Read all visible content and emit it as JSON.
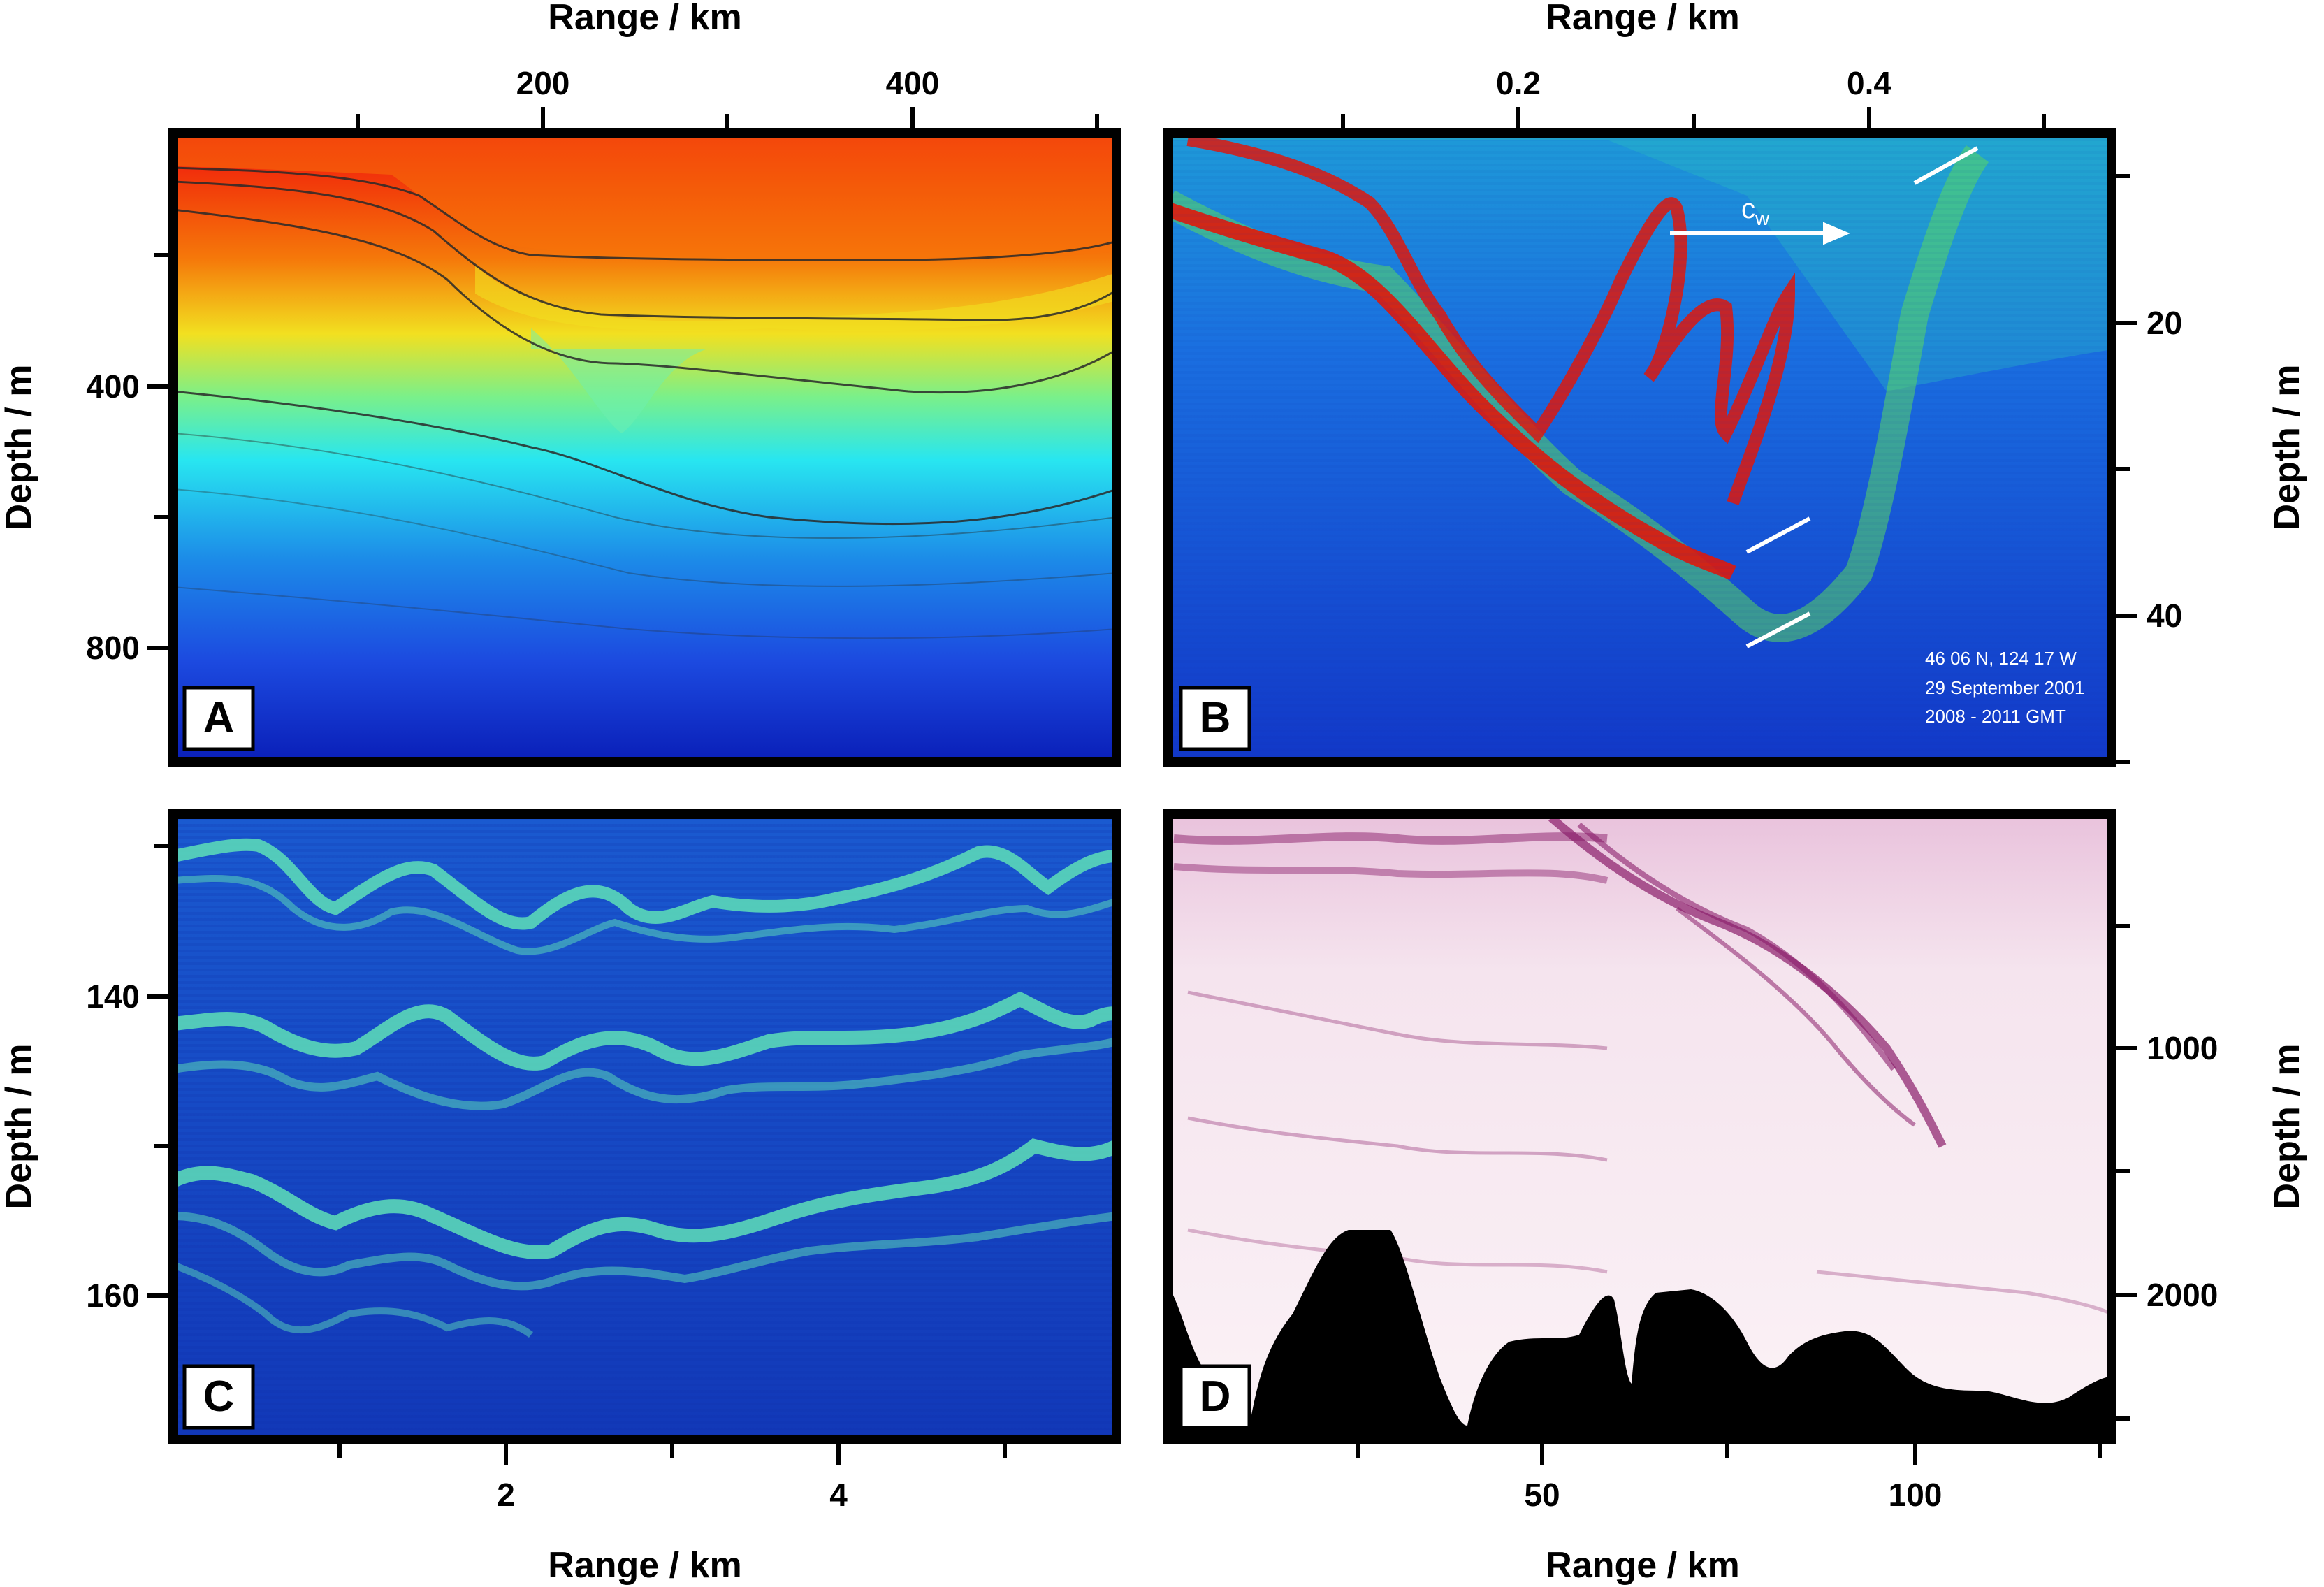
{
  "panels": {
    "A": {
      "letter": "A",
      "top_axis_label": "Range / km",
      "top_ticks": [
        "200",
        "400"
      ],
      "left_axis_label": "Depth / m",
      "left_ticks": [
        "400",
        "800"
      ]
    },
    "B": {
      "letter": "B",
      "top_axis_label": "Range / km",
      "top_ticks": [
        "0.2",
        "0.4"
      ],
      "right_axis_label": "Depth / m",
      "right_ticks": [
        "20",
        "40"
      ],
      "arrow_label": "c",
      "arrow_label_sub": "w",
      "annotation": [
        "46 06 N, 124 17 W",
        "29 September 2001",
        "2008 - 2011 GMT"
      ]
    },
    "C": {
      "letter": "C",
      "bottom_axis_label": "Range / km",
      "bottom_ticks": [
        "2",
        "4"
      ],
      "left_axis_label": "Depth / m",
      "left_ticks": [
        "140",
        "160"
      ]
    },
    "D": {
      "letter": "D",
      "bottom_axis_label": "Range / km",
      "bottom_ticks": [
        "50",
        "100"
      ],
      "right_axis_label": "Depth / m",
      "right_ticks": [
        "1000",
        "2000"
      ]
    }
  },
  "colors": {
    "frame": "#000000",
    "hot": "#e01a0a",
    "warm": "#f56a0a",
    "yellow": "#f2e020",
    "cyan": "#28e6f0",
    "blue": "#1c4ae0",
    "deep_blue": "#0a1fb8",
    "seismic": "#8a1d6a"
  }
}
